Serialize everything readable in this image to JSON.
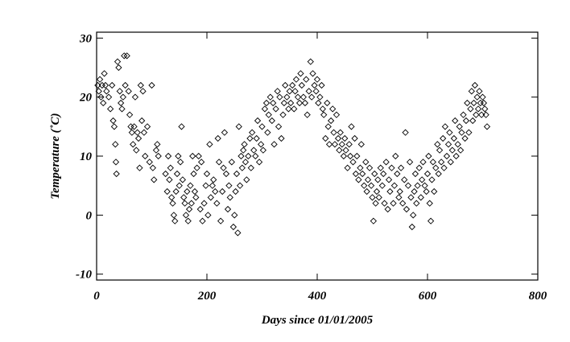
{
  "chart_data": {
    "type": "scatter",
    "title": "",
    "xlabel": "Days since 01/01/2005",
    "ylabel": "Temperature (˚C)",
    "xlim": [
      0,
      800
    ],
    "ylim": [
      -11,
      31
    ],
    "x_ticks": [
      0,
      200,
      400,
      600,
      800
    ],
    "y_ticks": [
      -10,
      0,
      10,
      20,
      30
    ],
    "x_tick_labels": [
      "0",
      "200",
      "400",
      "600",
      "800"
    ],
    "y_tick_labels": [
      "-10",
      "0",
      "10",
      "20",
      "30"
    ],
    "marker": "diamond",
    "grid": false,
    "legend": "none",
    "series": [
      {
        "points": [
          [
            2,
            22
          ],
          [
            4,
            21
          ],
          [
            6,
            23
          ],
          [
            8,
            20
          ],
          [
            10,
            22
          ],
          [
            12,
            19
          ],
          [
            14,
            24
          ],
          [
            16,
            22
          ],
          [
            18,
            21
          ],
          [
            22,
            20
          ],
          [
            25,
            18
          ],
          [
            28,
            22
          ],
          [
            30,
            16
          ],
          [
            32,
            15
          ],
          [
            34,
            12
          ],
          [
            35,
            9
          ],
          [
            36,
            7
          ],
          [
            38,
            26
          ],
          [
            40,
            25
          ],
          [
            42,
            21
          ],
          [
            44,
            19
          ],
          [
            46,
            18
          ],
          [
            48,
            20
          ],
          [
            50,
            27
          ],
          [
            52,
            22
          ],
          [
            55,
            27
          ],
          [
            58,
            21
          ],
          [
            60,
            17
          ],
          [
            62,
            15
          ],
          [
            64,
            14
          ],
          [
            66,
            12
          ],
          [
            68,
            15
          ],
          [
            70,
            20
          ],
          [
            72,
            11
          ],
          [
            74,
            14
          ],
          [
            76,
            13
          ],
          [
            78,
            8
          ],
          [
            80,
            22
          ],
          [
            82,
            16
          ],
          [
            84,
            21
          ],
          [
            86,
            14
          ],
          [
            88,
            10
          ],
          [
            92,
            15
          ],
          [
            96,
            9
          ],
          [
            100,
            22
          ],
          [
            102,
            8
          ],
          [
            104,
            6
          ],
          [
            108,
            11
          ],
          [
            110,
            12
          ],
          [
            112,
            10
          ],
          [
            125,
            7
          ],
          [
            128,
            4
          ],
          [
            130,
            10
          ],
          [
            132,
            6
          ],
          [
            134,
            8
          ],
          [
            136,
            3
          ],
          [
            138,
            2
          ],
          [
            140,
            0
          ],
          [
            142,
            -1
          ],
          [
            144,
            4
          ],
          [
            146,
            7
          ],
          [
            148,
            10
          ],
          [
            150,
            5
          ],
          [
            152,
            9
          ],
          [
            154,
            15
          ],
          [
            156,
            6
          ],
          [
            158,
            3
          ],
          [
            160,
            2
          ],
          [
            162,
            0
          ],
          [
            164,
            4
          ],
          [
            166,
            -1
          ],
          [
            168,
            1
          ],
          [
            170,
            5
          ],
          [
            172,
            2
          ],
          [
            174,
            10
          ],
          [
            176,
            7
          ],
          [
            178,
            4
          ],
          [
            180,
            3
          ],
          [
            182,
            8
          ],
          [
            185,
            10
          ],
          [
            188,
            1
          ],
          [
            190,
            9
          ],
          [
            192,
            -1
          ],
          [
            195,
            2
          ],
          [
            198,
            5
          ],
          [
            200,
            7
          ],
          [
            202,
            0
          ],
          [
            205,
            12
          ],
          [
            207,
            3
          ],
          [
            210,
            5
          ],
          [
            212,
            6
          ],
          [
            215,
            4
          ],
          [
            218,
            2
          ],
          [
            220,
            13
          ],
          [
            222,
            9
          ],
          [
            225,
            -1
          ],
          [
            228,
            4
          ],
          [
            230,
            8
          ],
          [
            232,
            14
          ],
          [
            235,
            7
          ],
          [
            238,
            1
          ],
          [
            240,
            5
          ],
          [
            242,
            3
          ],
          [
            245,
            9
          ],
          [
            248,
            -2
          ],
          [
            250,
            0
          ],
          [
            252,
            4
          ],
          [
            254,
            7
          ],
          [
            256,
            -3
          ],
          [
            258,
            15
          ],
          [
            260,
            5
          ],
          [
            262,
            10
          ],
          [
            264,
            8
          ],
          [
            266,
            11
          ],
          [
            268,
            12
          ],
          [
            270,
            9
          ],
          [
            272,
            6
          ],
          [
            275,
            10
          ],
          [
            278,
            13
          ],
          [
            280,
            8
          ],
          [
            282,
            14
          ],
          [
            285,
            11
          ],
          [
            288,
            10
          ],
          [
            290,
            13
          ],
          [
            292,
            16
          ],
          [
            295,
            9
          ],
          [
            298,
            12
          ],
          [
            300,
            15
          ],
          [
            302,
            11
          ],
          [
            305,
            18
          ],
          [
            308,
            19
          ],
          [
            310,
            14
          ],
          [
            312,
            17
          ],
          [
            315,
            20
          ],
          [
            318,
            16
          ],
          [
            320,
            19
          ],
          [
            322,
            12
          ],
          [
            325,
            18
          ],
          [
            328,
            21
          ],
          [
            330,
            15
          ],
          [
            332,
            20
          ],
          [
            335,
            13
          ],
          [
            338,
            17
          ],
          [
            340,
            19
          ],
          [
            342,
            22
          ],
          [
            345,
            20
          ],
          [
            348,
            18
          ],
          [
            350,
            21
          ],
          [
            352,
            19
          ],
          [
            355,
            22
          ],
          [
            358,
            18
          ],
          [
            360,
            21
          ],
          [
            362,
            23
          ],
          [
            365,
            20
          ],
          [
            368,
            19
          ],
          [
            370,
            24
          ],
          [
            372,
            22
          ],
          [
            375,
            20
          ],
          [
            378,
            19
          ],
          [
            380,
            23
          ],
          [
            382,
            17
          ],
          [
            385,
            21
          ],
          [
            388,
            26
          ],
          [
            390,
            20
          ],
          [
            392,
            24
          ],
          [
            395,
            22
          ],
          [
            398,
            21
          ],
          [
            400,
            23
          ],
          [
            402,
            19
          ],
          [
            405,
            20
          ],
          [
            408,
            22
          ],
          [
            410,
            18
          ],
          [
            412,
            17
          ],
          [
            415,
            13
          ],
          [
            418,
            19
          ],
          [
            420,
            15
          ],
          [
            422,
            12
          ],
          [
            425,
            16
          ],
          [
            428,
            18
          ],
          [
            430,
            14
          ],
          [
            432,
            12
          ],
          [
            435,
            17
          ],
          [
            438,
            13
          ],
          [
            440,
            11
          ],
          [
            442,
            14
          ],
          [
            445,
            12
          ],
          [
            448,
            10
          ],
          [
            450,
            13
          ],
          [
            452,
            11
          ],
          [
            455,
            8
          ],
          [
            458,
            12
          ],
          [
            460,
            10
          ],
          [
            462,
            15
          ],
          [
            465,
            9
          ],
          [
            468,
            13
          ],
          [
            470,
            7
          ],
          [
            472,
            10
          ],
          [
            475,
            6
          ],
          [
            478,
            8
          ],
          [
            480,
            12
          ],
          [
            482,
            7
          ],
          [
            485,
            5
          ],
          [
            488,
            9
          ],
          [
            490,
            4
          ],
          [
            492,
            6
          ],
          [
            495,
            8
          ],
          [
            498,
            5
          ],
          [
            500,
            3
          ],
          [
            502,
            -1
          ],
          [
            504,
            7
          ],
          [
            506,
            2
          ],
          [
            508,
            4
          ],
          [
            510,
            6
          ],
          [
            512,
            3
          ],
          [
            515,
            8
          ],
          [
            518,
            5
          ],
          [
            520,
            7
          ],
          [
            522,
            2
          ],
          [
            525,
            9
          ],
          [
            528,
            1
          ],
          [
            530,
            6
          ],
          [
            532,
            4
          ],
          [
            535,
            8
          ],
          [
            538,
            2
          ],
          [
            540,
            5
          ],
          [
            542,
            10
          ],
          [
            545,
            7
          ],
          [
            548,
            3
          ],
          [
            550,
            4
          ],
          [
            552,
            8
          ],
          [
            555,
            2
          ],
          [
            558,
            6
          ],
          [
            560,
            14
          ],
          [
            562,
            1
          ],
          [
            565,
            5
          ],
          [
            568,
            9
          ],
          [
            570,
            3
          ],
          [
            572,
            -2
          ],
          [
            574,
            0
          ],
          [
            576,
            4
          ],
          [
            578,
            7
          ],
          [
            580,
            2
          ],
          [
            582,
            5
          ],
          [
            585,
            8
          ],
          [
            588,
            3
          ],
          [
            590,
            6
          ],
          [
            592,
            9
          ],
          [
            595,
            5
          ],
          [
            598,
            4
          ],
          [
            600,
            7
          ],
          [
            602,
            10
          ],
          [
            604,
            2
          ],
          [
            606,
            -1
          ],
          [
            608,
            6
          ],
          [
            610,
            9
          ],
          [
            612,
            4
          ],
          [
            615,
            8
          ],
          [
            618,
            12
          ],
          [
            620,
            7
          ],
          [
            622,
            11
          ],
          [
            625,
            9
          ],
          [
            628,
            13
          ],
          [
            630,
            8
          ],
          [
            632,
            15
          ],
          [
            635,
            10
          ],
          [
            638,
            12
          ],
          [
            640,
            14
          ],
          [
            642,
            9
          ],
          [
            645,
            11
          ],
          [
            648,
            13
          ],
          [
            650,
            16
          ],
          [
            652,
            10
          ],
          [
            655,
            12
          ],
          [
            658,
            15
          ],
          [
            660,
            11
          ],
          [
            662,
            14
          ],
          [
            665,
            17
          ],
          [
            668,
            13
          ],
          [
            670,
            16
          ],
          [
            672,
            19
          ],
          [
            675,
            14
          ],
          [
            678,
            18
          ],
          [
            680,
            21
          ],
          [
            682,
            16
          ],
          [
            684,
            19
          ],
          [
            686,
            22
          ],
          [
            688,
            17
          ],
          [
            690,
            20
          ],
          [
            692,
            18
          ],
          [
            694,
            21
          ],
          [
            696,
            19
          ],
          [
            698,
            17
          ],
          [
            700,
            20
          ],
          [
            702,
            19
          ],
          [
            704,
            18
          ],
          [
            706,
            17
          ],
          [
            708,
            15
          ]
        ]
      }
    ]
  }
}
